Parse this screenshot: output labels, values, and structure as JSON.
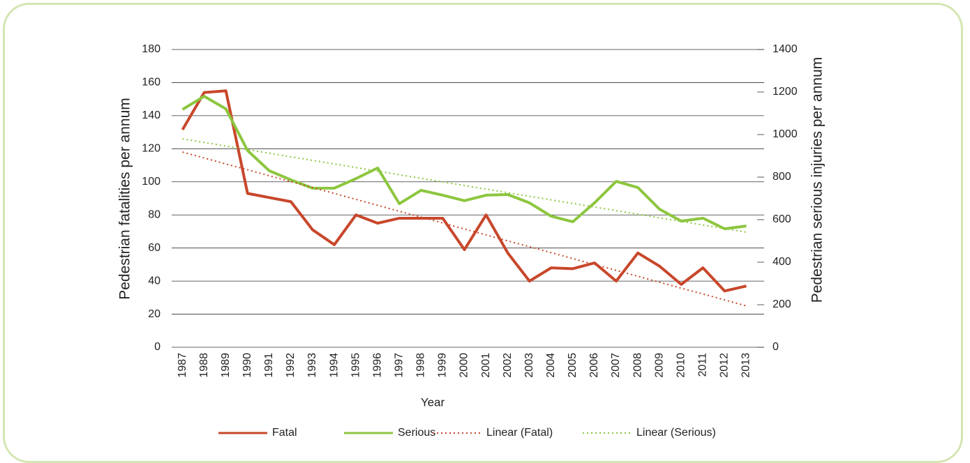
{
  "chart_data": {
    "type": "line",
    "x_label": "Year",
    "y_label": "Pedestrian fatalities per annum",
    "y2_label": "Pedestrian serious injuries per annum",
    "categories": [
      "1987",
      "1988",
      "1989",
      "1990",
      "1991",
      "1992",
      "1993",
      "1994",
      "1995",
      "1996",
      "1997",
      "1998",
      "1999",
      "2000",
      "2001",
      "2002",
      "2003",
      "2004",
      "2005",
      "2006",
      "2007",
      "2008",
      "2009",
      "2010",
      "2011",
      "2012",
      "2013"
    ],
    "series": [
      {
        "name": "Fatal",
        "color": "#c8472b",
        "dash": false,
        "values": [
          131.5,
          154,
          155,
          93,
          90.5,
          88,
          71,
          62,
          80,
          75,
          78,
          78,
          78,
          59,
          80,
          57,
          40,
          48,
          47.5,
          51,
          40,
          57,
          49,
          38,
          48,
          34,
          37
        ]
      },
      {
        "name": "Serious",
        "color": "#8dc63f",
        "axis": "y2",
        "dash": false,
        "values": [
          1118,
          1180,
          1121,
          925,
          830,
          787,
          748,
          748,
          793,
          843,
          675,
          738,
          715,
          689,
          715,
          718,
          679,
          616,
          590,
          679,
          780,
          751,
          649,
          593,
          607,
          557,
          570
        ]
      },
      {
        "name": "Linear (Fatal)",
        "color": "#c8472b",
        "dash": true,
        "values": [
          118,
          114.4,
          110.8,
          107.3,
          103.7,
          100.1,
          96.5,
          93,
          89.4,
          85.8,
          82.2,
          78.7,
          75.1,
          71.5,
          67.9,
          64.3,
          60.8,
          57.2,
          53.6,
          50,
          46.5,
          42.9,
          39.3,
          35.7,
          32.2,
          28.6,
          25
        ]
      },
      {
        "name": "Linear (Serious)",
        "color": "#8dc63f",
        "axis": "y2",
        "dash": true,
        "values": [
          980,
          963.1,
          946.2,
          929.3,
          912.5,
          895.6,
          878.7,
          861.8,
          844.9,
          828.1,
          811.2,
          794.3,
          777.4,
          760.5,
          743.7,
          726.8,
          709.9,
          693,
          676.1,
          659.3,
          642.4,
          625.5,
          608.6,
          591.7,
          574.9,
          558,
          541
        ]
      }
    ],
    "ylim": [
      0,
      180
    ],
    "yticks": [
      0,
      20,
      40,
      60,
      80,
      100,
      120,
      140,
      160,
      180
    ],
    "y2lim": [
      0,
      1400
    ],
    "y2ticks": [
      0,
      200,
      400,
      600,
      800,
      1000,
      1200,
      1400
    ],
    "grid": true,
    "legend": "bottom"
  }
}
